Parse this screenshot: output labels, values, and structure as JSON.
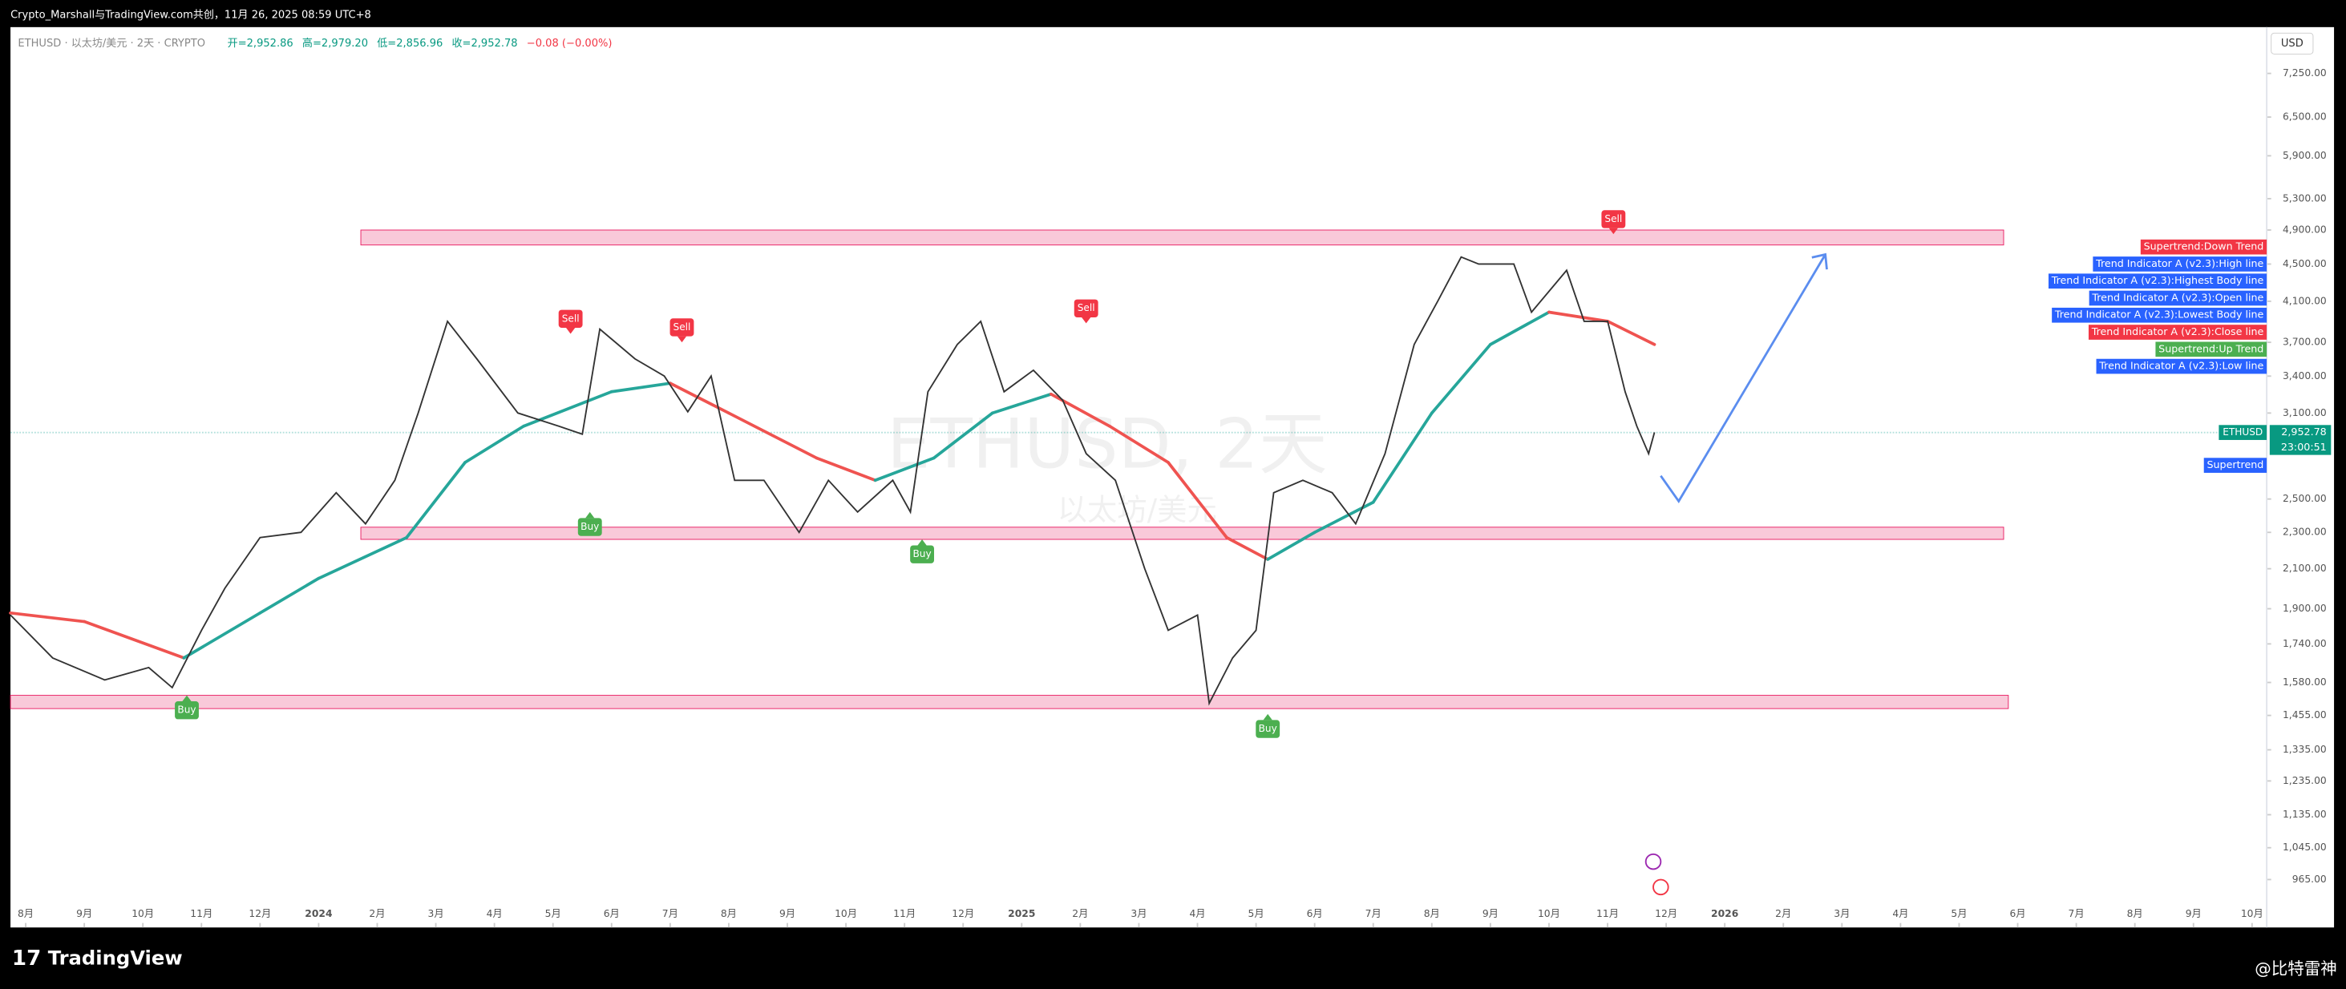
{
  "header": {
    "caption": "Crypto_Marshall与TradingView.com共创，11月 26, 2025 08:59 UTC+8",
    "symbol_line": "ETHUSD · 以太坊/美元 · 2天 · CRYPTO",
    "ohlc": [
      "开=2,952.86",
      "高=2,979.20",
      "低=2,856.96",
      "收=2,952.78",
      "−0.08 (−0.00%)"
    ],
    "currency": "USD"
  },
  "footer": {
    "brand": "TradingView",
    "author": "@比特雷神"
  },
  "watermark": {
    "symbol": "ETHUSD, 2天",
    "name": "以太坊/美元"
  },
  "chart_data": {
    "type": "line",
    "log_scale": true,
    "color": "#26a69a",
    "xlim": [
      -0.26,
      38.25
    ],
    "xticks": [
      {
        "value": 0,
        "label": "8月"
      },
      {
        "value": 1,
        "label": "9月"
      },
      {
        "value": 2,
        "label": "10月"
      },
      {
        "value": 3,
        "label": "11月"
      },
      {
        "value": 4,
        "label": "12月"
      },
      {
        "value": 5,
        "label": "2024"
      },
      {
        "value": 6,
        "label": "2月"
      },
      {
        "value": 7,
        "label": "3月"
      },
      {
        "value": 8,
        "label": "4月"
      },
      {
        "value": 9,
        "label": "5月"
      },
      {
        "value": 10,
        "label": "6月"
      },
      {
        "value": 11,
        "label": "7月"
      },
      {
        "value": 12,
        "label": "8月"
      },
      {
        "value": 13,
        "label": "9月"
      },
      {
        "value": 14,
        "label": "10月"
      },
      {
        "value": 15,
        "label": "11月"
      },
      {
        "value": 16,
        "label": "12月"
      },
      {
        "value": 17,
        "label": "2025"
      },
      {
        "value": 18,
        "label": "2月"
      },
      {
        "value": 19,
        "label": "3月"
      },
      {
        "value": 20,
        "label": "4月"
      },
      {
        "value": 21,
        "label": "5月"
      },
      {
        "value": 22,
        "label": "6月"
      },
      {
        "value": 23,
        "label": "7月"
      },
      {
        "value": 24,
        "label": "8月"
      },
      {
        "value": 25,
        "label": "9月"
      },
      {
        "value": 26,
        "label": "10月"
      },
      {
        "value": 27,
        "label": "11月"
      },
      {
        "value": 28,
        "label": "12月"
      },
      {
        "value": 29,
        "label": "2026"
      },
      {
        "value": 30,
        "label": "2月"
      },
      {
        "value": 31,
        "label": "3月"
      },
      {
        "value": 32,
        "label": "4月"
      },
      {
        "value": 33,
        "label": "5月"
      },
      {
        "value": 34,
        "label": "6月"
      },
      {
        "value": 35,
        "label": "7月"
      },
      {
        "value": 36,
        "label": "8月"
      },
      {
        "value": 37,
        "label": "9月"
      },
      {
        "value": 38,
        "label": "10月"
      }
    ],
    "ylim": [
      856,
      8140
    ],
    "yticks": [
      {
        "value": 7250,
        "label": "7,250.00"
      },
      {
        "value": 6500,
        "label": "6,500.00"
      },
      {
        "value": 5900,
        "label": "5,900.00"
      },
      {
        "value": 5300,
        "label": "5,300.00"
      },
      {
        "value": 4900,
        "label": "4,900.00"
      },
      {
        "value": 4500,
        "label": "4,500.00"
      },
      {
        "value": 4100,
        "label": "4,100.00"
      },
      {
        "value": 3700,
        "label": "3,700.00"
      },
      {
        "value": 3400,
        "label": "3,400.00"
      },
      {
        "value": 3100,
        "label": "3,100.00"
      },
      {
        "value": 2500,
        "label": "2,500.00"
      },
      {
        "value": 2300,
        "label": "2,300.00"
      },
      {
        "value": 2100,
        "label": "2,100.00"
      },
      {
        "value": 1900,
        "label": "1,900.00"
      },
      {
        "value": 1740,
        "label": "1,740.00"
      },
      {
        "value": 1580,
        "label": "1,580.00"
      },
      {
        "value": 1455,
        "label": "1,455.00"
      },
      {
        "value": 1335,
        "label": "1,335.00"
      },
      {
        "value": 1235,
        "label": "1,235.00"
      },
      {
        "value": 1135,
        "label": "1,135.00"
      },
      {
        "value": 1045,
        "label": "1,045.00"
      },
      {
        "value": 965,
        "label": "965.00"
      }
    ],
    "x": [
      -0.26,
      0.46,
      1.35,
      2.1,
      2.5,
      3.0,
      3.4,
      4.0,
      4.7,
      5.3,
      5.8,
      6.3,
      6.7,
      7.2,
      7.7,
      8.4,
      9.1,
      9.5,
      9.8,
      10.4,
      10.9,
      11.3,
      11.7,
      12.1,
      12.6,
      13.2,
      13.7,
      14.2,
      14.8,
      15.1,
      15.4,
      15.9,
      16.3,
      16.7,
      17.2,
      17.7,
      18.1,
      18.6,
      19.1,
      19.5,
      20.0,
      20.2,
      20.6,
      21.0,
      21.3,
      21.8,
      22.3,
      22.7,
      23.2,
      23.7,
      24.1,
      24.5,
      24.8,
      25.4,
      25.7,
      26.3,
      26.6,
      27.0,
      27.3,
      27.5,
      27.7,
      27.8
    ],
    "values": [
      1870,
      1680,
      1590,
      1640,
      1560,
      1800,
      2000,
      2270,
      2300,
      2540,
      2350,
      2620,
      3100,
      3900,
      3550,
      3100,
      3000,
      2940,
      3825,
      3550,
      3400,
      3110,
      3400,
      2620,
      2620,
      2300,
      2620,
      2420,
      2620,
      2420,
      3270,
      3680,
      3900,
      3270,
      3450,
      3200,
      2800,
      2620,
      2100,
      1800,
      1870,
      1500,
      1680,
      1800,
      2540,
      2620,
      2540,
      2350,
      2800,
      3680,
      4100,
      4580,
      4500,
      4500,
      3990,
      4430,
      3900,
      3900,
      3270,
      3000,
      2800,
      2952.78
    ],
    "ma": {
      "up_color": "#26a69a",
      "down_color": "#ef5350",
      "x": [
        -0.26,
        1,
        2.7,
        4,
        5,
        6.5,
        7.5,
        8.5,
        10,
        11,
        12,
        13.5,
        14.5,
        15.5,
        16.5,
        17.5,
        18.5,
        19.5,
        20.5,
        21.2,
        22,
        23,
        24,
        25,
        26,
        27,
        27.8
      ],
      "values": [
        1880,
        1840,
        1680,
        1880,
        2050,
        2270,
        2740,
        3000,
        3270,
        3340,
        3100,
        2770,
        2620,
        2770,
        3100,
        3250,
        3000,
        2740,
        2270,
        2150,
        2300,
        2480,
        3100,
        3680,
        3990,
        3900,
        3680
      ]
    },
    "zones": [
      {
        "x1": 5.72,
        "x2": 33.76,
        "low": 4720,
        "high": 4900
      },
      {
        "x1": 5.72,
        "x2": 33.76,
        "low": 2260,
        "high": 2330
      },
      {
        "x1": -0.26,
        "x2": 33.84,
        "low": 1480,
        "high": 1530
      }
    ],
    "zone_color": "#f8bbd0",
    "signals": [
      {
        "text": "Buy",
        "x": 2.75,
        "price": 1530
      },
      {
        "text": "Buy",
        "x": 9.63,
        "price": 2420
      },
      {
        "text": "Buy",
        "x": 15.3,
        "price": 2260
      },
      {
        "text": "Buy",
        "x": 21.2,
        "price": 1460
      },
      {
        "text": "Sell",
        "x": 9.3,
        "price": 3780
      },
      {
        "text": "Sell",
        "x": 11.2,
        "price": 3700
      },
      {
        "text": "Sell",
        "x": 18.1,
        "price": 3880
      },
      {
        "text": "Sell",
        "x": 27.1,
        "price": 4850
      }
    ],
    "buy_color": "#4caf50",
    "sell_color": "#f23645",
    "indicators": [
      {
        "text": "Supertrend:Down Trend",
        "color": "#f23645"
      },
      {
        "text": "Trend Indicator A (v2.3):High line",
        "color": "#2962ff"
      },
      {
        "text": "Trend Indicator A (v2.3):Highest Body line",
        "color": "#2962ff"
      },
      {
        "text": "Trend Indicator A (v2.3):Open line",
        "color": "#2962ff"
      },
      {
        "text": "Trend Indicator A (v2.3):Lowest Body line",
        "color": "#2962ff"
      },
      {
        "text": "Trend Indicator A (v2.3):Close line",
        "color": "#f23645"
      },
      {
        "text": "Supertrend:Up Trend",
        "color": "#4caf50"
      },
      {
        "text": "Trend Indicator A (v2.3):Low line",
        "color": "#2962ff"
      }
    ],
    "supertrend_label": {
      "text": "Supertrend",
      "color": "#2962ff"
    },
    "last": {
      "symbol": "ETHUSD",
      "price": {
        "value": 2952.78,
        "label": "2,952.78"
      },
      "countdown": "23:00:51"
    }
  }
}
